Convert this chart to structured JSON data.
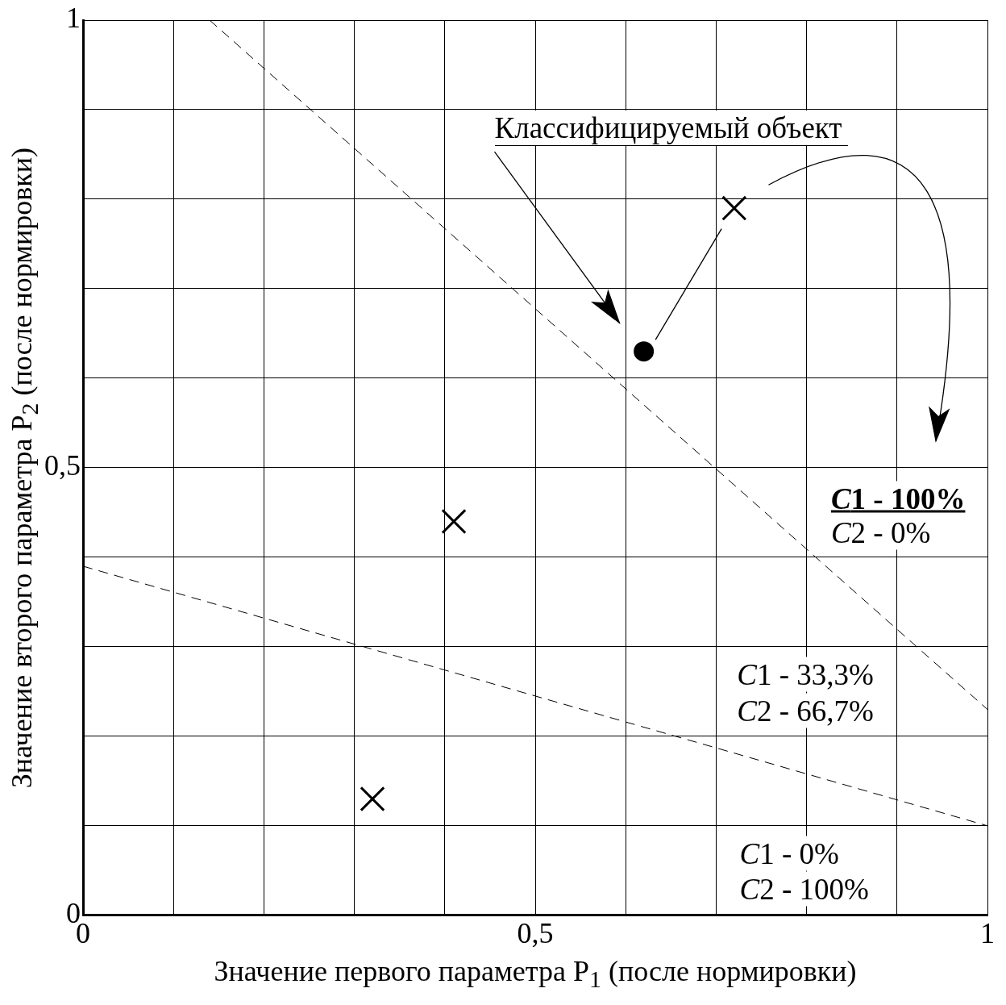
{
  "chart_data": {
    "type": "scatter",
    "xlabel": "Значение первого параметра P$_{1}$ (после нормировки)",
    "ylabel": "Значение второго параметра P$_{2}$ (после нормировки)",
    "xlim": [
      0,
      1
    ],
    "ylim": [
      0,
      1
    ],
    "xticks": [
      0,
      {
        "value": 0.1,
        "label": null
      },
      {
        "value": 0.2,
        "label": null
      },
      {
        "value": 0.3,
        "label": null
      },
      {
        "value": 0.4,
        "label": null
      },
      {
        "value": 0.5,
        "label": "0,5"
      },
      {
        "value": 0.6,
        "label": null
      },
      {
        "value": 0.7,
        "label": null
      },
      {
        "value": 0.8,
        "label": null
      },
      {
        "value": 0.9,
        "label": null
      },
      1
    ],
    "yticks": [
      0,
      {
        "value": 0.1,
        "label": null
      },
      {
        "value": 0.2,
        "label": null
      },
      {
        "value": 0.3,
        "label": null
      },
      {
        "value": 0.4,
        "label": null
      },
      {
        "value": 0.5,
        "label": "0,5"
      },
      {
        "value": 0.6,
        "label": null
      },
      {
        "value": 0.7,
        "label": null
      },
      {
        "value": 0.8,
        "label": null
      },
      {
        "value": 0.9,
        "label": null
      },
      1
    ],
    "grid": true,
    "series": [
      {
        "type": "scatter",
        "marker": "cross",
        "color": "#000000",
        "x": [
          0.72,
          0.41,
          0.32
        ],
        "values": [
          0.79,
          0.44,
          0.13
        ]
      },
      {
        "type": "scatter",
        "marker": "circle",
        "color": "#000000",
        "x": [
          0.62
        ],
        "values": [
          0.63
        ]
      },
      {
        "type": "line",
        "line_style": "dashed",
        "marker": "none",
        "color": "#000000",
        "x": [
          0.14,
          1
        ],
        "values": [
          1,
          0.23
        ]
      },
      {
        "type": "line",
        "line_style": "dashed",
        "marker": "none",
        "color": "#000000",
        "x": [
          0,
          1
        ],
        "values": [
          0.39,
          0.1
        ]
      }
    ],
    "annotations": [
      "Классифицируемый объект",
      "C1 - 100%",
      "C2 - 0%",
      "C1 - 33,3%",
      "C2 - 66,7%",
      "C1 - 0%",
      "C2 - 100%"
    ]
  }
}
